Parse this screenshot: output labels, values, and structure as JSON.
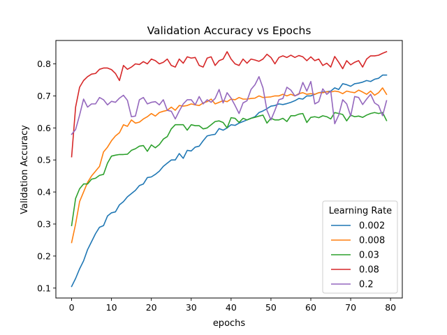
{
  "chart_data": {
    "type": "line",
    "title": "Validation Accuracy vs Epochs",
    "xlabel": "epochs",
    "ylabel": "Validation Accuracy",
    "xlim": [
      -3.95,
      82.95
    ],
    "ylim": [
      0.069,
      0.873
    ],
    "xticks": [
      0,
      10,
      20,
      30,
      40,
      50,
      60,
      70,
      80
    ],
    "yticks": [
      0.1,
      0.2,
      0.3,
      0.4,
      0.5,
      0.6,
      0.7,
      0.8
    ],
    "ytick_labels": [
      "0.1",
      "0.2",
      "0.3",
      "0.4",
      "0.5",
      "0.6",
      "0.7",
      "0.8"
    ],
    "grid": false,
    "legend": {
      "title": "Learning Rate",
      "position": "lower-right"
    },
    "x": [
      0,
      1,
      2,
      3,
      4,
      5,
      6,
      7,
      8,
      9,
      10,
      11,
      12,
      13,
      14,
      15,
      16,
      17,
      18,
      19,
      20,
      21,
      22,
      23,
      24,
      25,
      26,
      27,
      28,
      29,
      30,
      31,
      32,
      33,
      34,
      35,
      36,
      37,
      38,
      39,
      40,
      41,
      42,
      43,
      44,
      45,
      46,
      47,
      48,
      49,
      50,
      51,
      52,
      53,
      54,
      55,
      56,
      57,
      58,
      59,
      60,
      61,
      62,
      63,
      64,
      65,
      66,
      67,
      68,
      69,
      70,
      71,
      72,
      73,
      74,
      75,
      76,
      77,
      78,
      79
    ],
    "series": [
      {
        "name": "0.002",
        "color": "#1f77b4",
        "values": [
          0.105,
          0.13,
          0.16,
          0.185,
          0.22,
          0.245,
          0.27,
          0.29,
          0.295,
          0.325,
          0.335,
          0.338,
          0.36,
          0.37,
          0.385,
          0.395,
          0.405,
          0.42,
          0.425,
          0.445,
          0.447,
          0.455,
          0.465,
          0.48,
          0.49,
          0.5,
          0.5,
          0.52,
          0.505,
          0.53,
          0.528,
          0.54,
          0.543,
          0.56,
          0.575,
          0.578,
          0.58,
          0.598,
          0.593,
          0.6,
          0.61,
          0.608,
          0.615,
          0.62,
          0.625,
          0.63,
          0.635,
          0.648,
          0.653,
          0.66,
          0.668,
          0.67,
          0.675,
          0.673,
          0.676,
          0.68,
          0.685,
          0.692,
          0.69,
          0.7,
          0.7,
          0.705,
          0.71,
          0.712,
          0.713,
          0.715,
          0.725,
          0.72,
          0.738,
          0.735,
          0.73,
          0.738,
          0.74,
          0.743,
          0.748,
          0.745,
          0.752,
          0.755,
          0.765,
          0.765
        ]
      },
      {
        "name": "0.008",
        "color": "#ff7f0e",
        "values": [
          0.242,
          0.3,
          0.37,
          0.4,
          0.43,
          0.45,
          0.465,
          0.48,
          0.525,
          0.54,
          0.56,
          0.575,
          0.585,
          0.61,
          0.605,
          0.625,
          0.615,
          0.618,
          0.628,
          0.635,
          0.645,
          0.637,
          0.648,
          0.652,
          0.655,
          0.665,
          0.655,
          0.67,
          0.668,
          0.67,
          0.675,
          0.672,
          0.67,
          0.678,
          0.682,
          0.69,
          0.675,
          0.68,
          0.685,
          0.682,
          0.69,
          0.688,
          0.695,
          0.69,
          0.69,
          0.692,
          0.693,
          0.7,
          0.695,
          0.696,
          0.697,
          0.7,
          0.7,
          0.705,
          0.7,
          0.705,
          0.7,
          0.707,
          0.71,
          0.705,
          0.707,
          0.705,
          0.71,
          0.71,
          0.713,
          0.712,
          0.715,
          0.713,
          0.707,
          0.715,
          0.712,
          0.71,
          0.718,
          0.712,
          0.705,
          0.715,
          0.702,
          0.71,
          0.725,
          0.705
        ]
      },
      {
        "name": "0.03",
        "color": "#2ca02c",
        "values": [
          0.295,
          0.38,
          0.41,
          0.425,
          0.425,
          0.44,
          0.443,
          0.452,
          0.455,
          0.49,
          0.512,
          0.515,
          0.517,
          0.517,
          0.518,
          0.53,
          0.535,
          0.543,
          0.545,
          0.527,
          0.547,
          0.538,
          0.548,
          0.565,
          0.573,
          0.597,
          0.61,
          0.61,
          0.61,
          0.593,
          0.61,
          0.607,
          0.607,
          0.597,
          0.6,
          0.61,
          0.62,
          0.622,
          0.617,
          0.6,
          0.632,
          0.63,
          0.617,
          0.63,
          0.625,
          0.63,
          0.633,
          0.637,
          0.64,
          0.615,
          0.63,
          0.625,
          0.625,
          0.63,
          0.62,
          0.638,
          0.638,
          0.643,
          0.645,
          0.617,
          0.633,
          0.635,
          0.632,
          0.638,
          0.635,
          0.628,
          0.648,
          0.645,
          0.642,
          0.622,
          0.64,
          0.635,
          0.637,
          0.633,
          0.64,
          0.645,
          0.648,
          0.645,
          0.648,
          0.623
        ]
      },
      {
        "name": "0.08",
        "color": "#d62728",
        "values": [
          0.51,
          0.665,
          0.727,
          0.748,
          0.76,
          0.768,
          0.77,
          0.783,
          0.787,
          0.787,
          0.782,
          0.77,
          0.748,
          0.795,
          0.783,
          0.79,
          0.8,
          0.798,
          0.807,
          0.8,
          0.815,
          0.81,
          0.8,
          0.805,
          0.815,
          0.795,
          0.79,
          0.815,
          0.802,
          0.822,
          0.818,
          0.82,
          0.795,
          0.79,
          0.818,
          0.822,
          0.795,
          0.81,
          0.815,
          0.838,
          0.815,
          0.8,
          0.795,
          0.815,
          0.802,
          0.815,
          0.812,
          0.808,
          0.815,
          0.83,
          0.82,
          0.8,
          0.82,
          0.825,
          0.82,
          0.827,
          0.82,
          0.826,
          0.822,
          0.81,
          0.822,
          0.81,
          0.815,
          0.795,
          0.802,
          0.79,
          0.823,
          0.805,
          0.785,
          0.81,
          0.797,
          0.805,
          0.81,
          0.79,
          0.815,
          0.825,
          0.825,
          0.827,
          0.833,
          0.838
        ]
      },
      {
        "name": "0.2",
        "color": "#9467bd",
        "values": [
          0.58,
          0.595,
          0.64,
          0.69,
          0.665,
          0.675,
          0.675,
          0.695,
          0.688,
          0.672,
          0.683,
          0.68,
          0.693,
          0.702,
          0.686,
          0.635,
          0.637,
          0.688,
          0.695,
          0.675,
          0.68,
          0.682,
          0.672,
          0.688,
          0.655,
          0.652,
          0.628,
          0.653,
          0.675,
          0.688,
          0.688,
          0.672,
          0.698,
          0.675,
          0.688,
          0.68,
          0.692,
          0.72,
          0.678,
          0.71,
          0.693,
          0.67,
          0.645,
          0.678,
          0.685,
          0.72,
          0.735,
          0.76,
          0.725,
          0.655,
          0.625,
          0.655,
          0.688,
          0.692,
          0.727,
          0.718,
          0.7,
          0.705,
          0.742,
          0.715,
          0.745,
          0.675,
          0.682,
          0.722,
          0.705,
          0.715,
          0.613,
          0.64,
          0.688,
          0.675,
          0.637,
          0.698,
          0.695,
          0.673,
          0.69,
          0.705,
          0.678,
          0.67,
          0.638,
          0.685
        ]
      }
    ]
  }
}
